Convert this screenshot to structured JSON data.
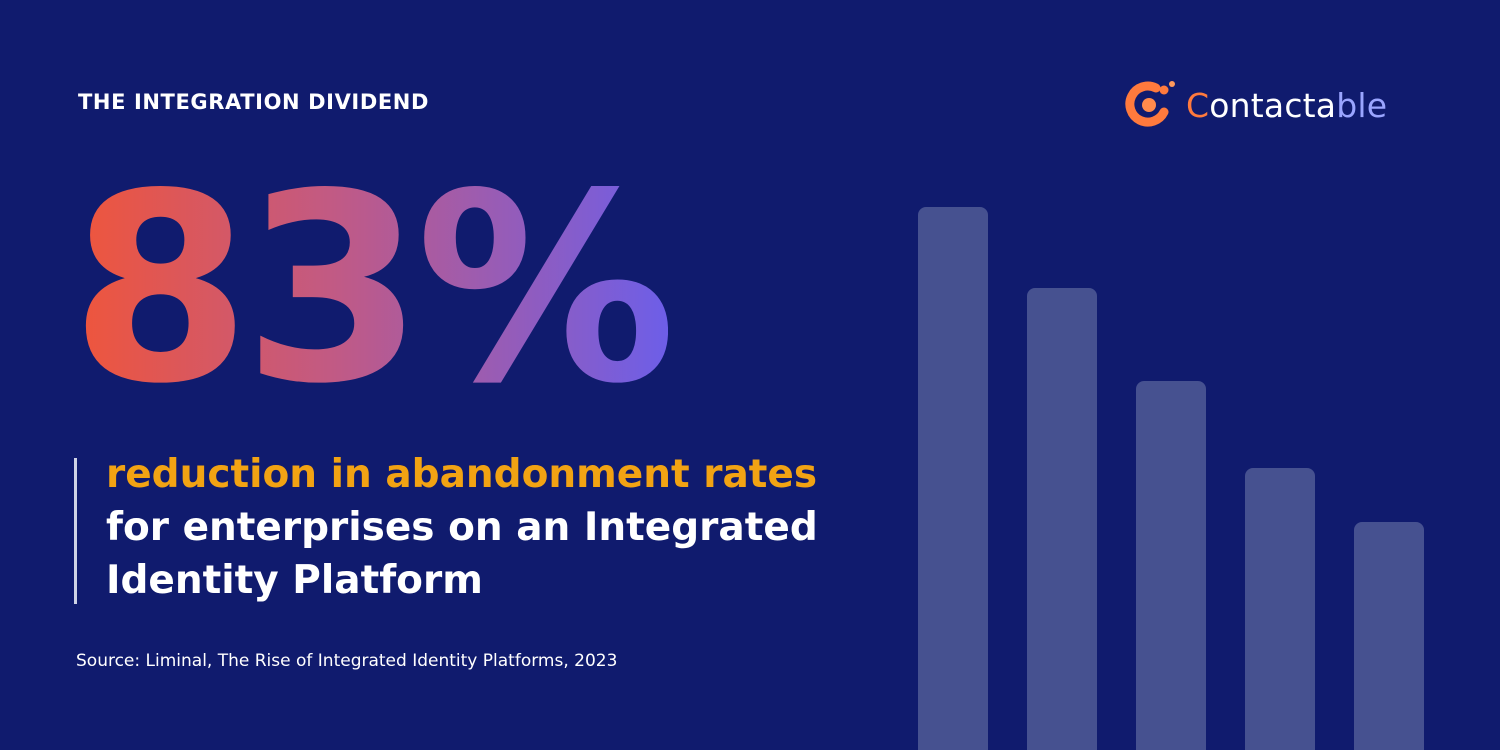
{
  "header": {
    "kicker": "THE INTEGRATION DIVIDEND",
    "brand": {
      "first": "C",
      "middle": "ontacta",
      "last": "ble"
    }
  },
  "stat": {
    "value": "83%",
    "highlight": "reduction in abandonment rates",
    "description": "for enterprises on an Integrated Identity Platform"
  },
  "source": "Source: Liminal, The Rise of Integrated Identity Platforms, 2023",
  "decor": {
    "bars_relative_heights": [
      1.0,
      0.85,
      0.68,
      0.52,
      0.42
    ]
  },
  "colors": {
    "background": "#101b6e",
    "accent_orange": "#f2a313",
    "gradient_start": "#f0553a",
    "gradient_end": "#6d5ee8",
    "bar": "#465190"
  }
}
